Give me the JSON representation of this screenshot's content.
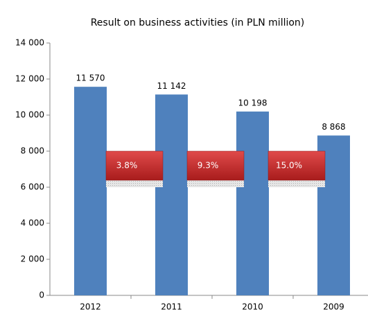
{
  "chart_data": {
    "type": "bar",
    "title": "Result on business activities (in PLN million)",
    "categories": [
      "2012",
      "2011",
      "2010",
      "2009"
    ],
    "values": [
      11570,
      11142,
      10198,
      8868
    ],
    "value_labels": [
      "11 570",
      "11 142",
      "10 198",
      "8 868"
    ],
    "color": "#4f81bd",
    "ylim": [
      0,
      14000
    ],
    "yticks": [
      0,
      {
        "value": 2000,
        "label": "2 000"
      },
      {
        "value": 4000,
        "label": "4 000"
      },
      {
        "value": 6000,
        "label": "6 000"
      },
      {
        "value": 8000,
        "label": "8 000"
      },
      {
        "value": 10000,
        "label": "10 000"
      },
      {
        "value": 12000,
        "label": "12 000"
      },
      {
        "value": 14000,
        "label": "14 000"
      }
    ],
    "annotations": [
      "3.8%",
      "9.3%",
      "15.0%"
    ],
    "grid": false
  }
}
